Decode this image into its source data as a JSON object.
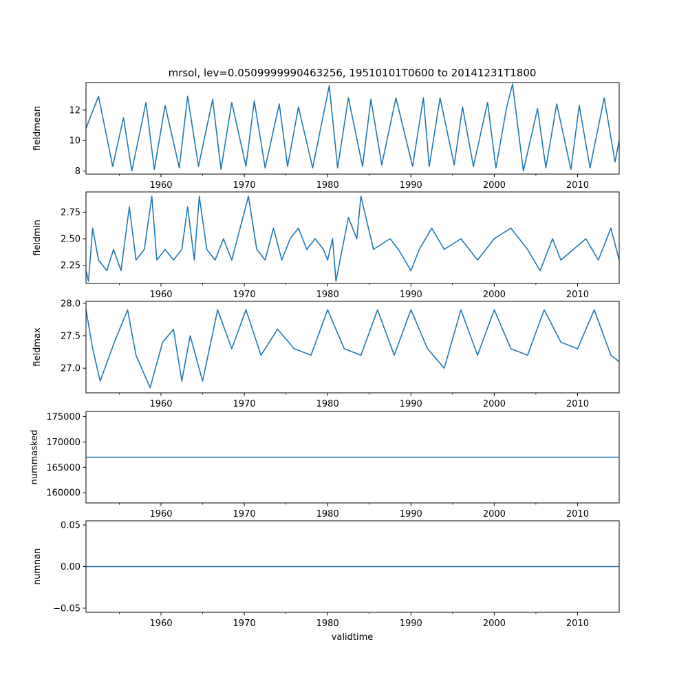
{
  "figure": {
    "title": "mrsol, lev=0.0509999990463256, 19510101T0600 to 20141231T1800",
    "xlabel": "validtime",
    "line_color": "#1f77b4"
  },
  "chart_data": [
    {
      "type": "line",
      "ylabel": "fieldmean",
      "xlim": [
        1951.0,
        2015.0
      ],
      "ylim": [
        7.8,
        13.8
      ],
      "xticks": [
        1960,
        1970,
        1980,
        1990,
        2000,
        2010
      ],
      "yticks": [
        8,
        10,
        12
      ],
      "ytick_labels": [
        "8",
        "10",
        "12"
      ],
      "x": [
        1951.0,
        1952.5,
        1954.2,
        1955.5,
        1956.5,
        1958.2,
        1959.2,
        1960.5,
        1962.2,
        1963.2,
        1964.5,
        1966.2,
        1967.2,
        1968.5,
        1970.2,
        1971.2,
        1972.5,
        1974.2,
        1975.2,
        1976.5,
        1978.2,
        1980.2,
        1981.2,
        1982.5,
        1984.2,
        1985.2,
        1986.5,
        1988.2,
        1990.2,
        1991.5,
        1992.2,
        1993.5,
        1995.2,
        1996.2,
        1997.5,
        1999.2,
        2000.2,
        2001.5,
        2002.2,
        2003.5,
        2005.2,
        2006.2,
        2007.5,
        2009.2,
        2010.2,
        2011.5,
        2013.2,
        2014.5,
        2015.0
      ],
      "y": [
        10.8,
        12.9,
        8.3,
        11.5,
        8.0,
        12.5,
        8.1,
        12.3,
        8.2,
        12.9,
        8.3,
        12.7,
        8.1,
        12.5,
        8.3,
        12.6,
        8.2,
        12.4,
        8.3,
        12.2,
        8.2,
        13.6,
        8.2,
        12.8,
        8.3,
        12.7,
        8.4,
        12.8,
        8.3,
        12.8,
        8.3,
        12.8,
        8.4,
        12.2,
        8.3,
        12.5,
        8.2,
        12.2,
        13.7,
        8.0,
        12.1,
        8.2,
        12.4,
        8.1,
        12.3,
        8.2,
        12.8,
        8.6,
        10.0
      ]
    },
    {
      "type": "line",
      "ylabel": "fieldmin",
      "xlim": [
        1951.0,
        2015.0
      ],
      "ylim": [
        2.08,
        2.94
      ],
      "xticks": [
        1960,
        1970,
        1980,
        1990,
        2000,
        2010
      ],
      "yticks": [
        2.25,
        2.5,
        2.75
      ],
      "ytick_labels": [
        "2.25",
        "2.50",
        "2.75"
      ],
      "x": [
        1951.0,
        1951.3,
        1951.8,
        1952.5,
        1953.5,
        1954.3,
        1955.2,
        1956.2,
        1957.0,
        1958.0,
        1958.9,
        1959.5,
        1960.5,
        1961.5,
        1962.5,
        1963.2,
        1964.0,
        1964.6,
        1965.5,
        1966.5,
        1967.5,
        1968.5,
        1969.5,
        1970.5,
        1971.5,
        1972.5,
        1973.5,
        1974.5,
        1975.5,
        1976.5,
        1977.5,
        1978.5,
        1979.5,
        1980.0,
        1980.6,
        1981.0,
        1981.5,
        1982.5,
        1983.5,
        1984.0,
        1985.5,
        1987.5,
        1988.5,
        1990.0,
        1991.0,
        1992.5,
        1994.0,
        1996.0,
        1998.0,
        2000.0,
        2002.0,
        2004.0,
        2005.5,
        2007.0,
        2008.0,
        2009.5,
        2011.0,
        2012.5,
        2014.0,
        2015.0
      ],
      "y": [
        2.2,
        2.1,
        2.6,
        2.3,
        2.2,
        2.4,
        2.2,
        2.8,
        2.3,
        2.4,
        2.9,
        2.3,
        2.4,
        2.3,
        2.4,
        2.8,
        2.3,
        2.9,
        2.4,
        2.3,
        2.5,
        2.3,
        2.6,
        2.9,
        2.4,
        2.3,
        2.6,
        2.3,
        2.5,
        2.6,
        2.4,
        2.5,
        2.4,
        2.3,
        2.5,
        2.1,
        2.3,
        2.7,
        2.5,
        2.9,
        2.4,
        2.5,
        2.4,
        2.2,
        2.4,
        2.6,
        2.4,
        2.5,
        2.3,
        2.5,
        2.6,
        2.4,
        2.2,
        2.5,
        2.3,
        2.4,
        2.5,
        2.3,
        2.6,
        2.3
      ]
    },
    {
      "type": "line",
      "ylabel": "fieldmax",
      "xlim": [
        1951.0,
        2015.0
      ],
      "ylim": [
        26.62,
        28.03
      ],
      "xticks": [
        1960,
        1970,
        1980,
        1990,
        2000,
        2010
      ],
      "yticks": [
        27.0,
        27.5,
        28.0
      ],
      "ytick_labels": [
        "27.0",
        "27.5",
        "28.0"
      ],
      "x": [
        1951.0,
        1951.8,
        1952.7,
        1954.4,
        1956.0,
        1957.0,
        1958.7,
        1960.2,
        1961.5,
        1962.5,
        1963.5,
        1965.0,
        1966.8,
        1968.5,
        1970.2,
        1972.0,
        1974.0,
        1976.0,
        1978.0,
        1980.0,
        1982.0,
        1984.0,
        1986.0,
        1988.0,
        1990.0,
        1992.0,
        1994.0,
        1996.0,
        1998.0,
        2000.0,
        2002.0,
        2004.0,
        2006.0,
        2008.0,
        2010.0,
        2012.0,
        2014.0,
        2015.0
      ],
      "y": [
        27.9,
        27.3,
        26.8,
        27.4,
        27.9,
        27.2,
        26.7,
        27.4,
        27.6,
        26.8,
        27.5,
        26.8,
        27.9,
        27.3,
        27.9,
        27.2,
        27.6,
        27.3,
        27.2,
        27.9,
        27.3,
        27.2,
        27.9,
        27.2,
        27.9,
        27.3,
        27.0,
        27.9,
        27.2,
        27.9,
        27.3,
        27.2,
        27.9,
        27.4,
        27.3,
        27.9,
        27.2,
        27.1
      ]
    },
    {
      "type": "line",
      "ylabel": "nummasked",
      "xlim": [
        1951.0,
        2015.0
      ],
      "ylim": [
        158000,
        176000
      ],
      "xticks": [
        1960,
        1970,
        1980,
        1990,
        2000,
        2010
      ],
      "yticks": [
        160000,
        165000,
        170000,
        175000
      ],
      "ytick_labels": [
        "160000",
        "165000",
        "170000",
        "175000"
      ],
      "x": [
        1951.0,
        2015.0
      ],
      "y": [
        167000,
        167000
      ]
    },
    {
      "type": "line",
      "ylabel": "numnan",
      "xlim": [
        1951.0,
        2015.0
      ],
      "ylim": [
        -0.055,
        0.055
      ],
      "xticks": [
        1960,
        1970,
        1980,
        1990,
        2000,
        2010
      ],
      "yticks": [
        -0.05,
        0.0,
        0.05
      ],
      "ytick_labels": [
        "−0.05",
        "0.00",
        "0.05"
      ],
      "x": [
        1951.0,
        2015.0
      ],
      "y": [
        0.0,
        0.0
      ]
    }
  ]
}
